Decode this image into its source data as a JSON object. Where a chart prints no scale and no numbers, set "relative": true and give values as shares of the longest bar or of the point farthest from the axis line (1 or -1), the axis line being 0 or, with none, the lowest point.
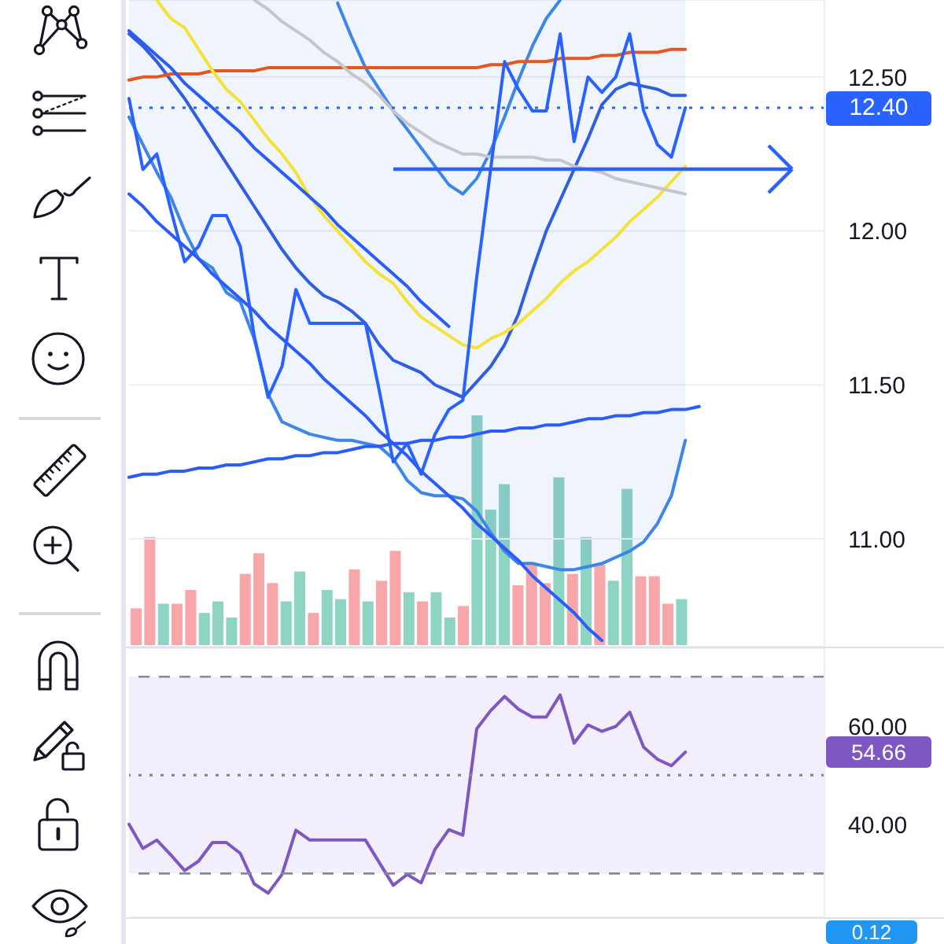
{
  "chart_data": [
    {
      "type": "line",
      "categories": [
        null,
        null,
        null,
        null,
        null,
        null,
        null,
        null,
        null,
        null,
        null,
        null,
        null,
        null,
        null,
        null,
        null,
        null,
        null,
        null,
        null,
        null,
        null,
        null,
        null,
        null,
        null,
        null,
        null,
        null,
        null,
        null,
        null,
        null,
        null,
        null,
        null,
        null,
        null,
        null,
        null,
        null,
        null,
        null,
        null,
        null,
        null,
        null,
        null,
        null,
        null
      ],
      "series": [
        {
          "color": "#2f5ee0",
          "values": [
            12.64,
            12.6,
            12.55,
            12.49,
            12.43,
            12.36,
            12.29,
            12.22,
            12.15,
            12.08,
            12.01,
            11.94,
            11.88,
            11.83,
            11.79,
            11.77,
            11.74,
            11.7,
            11.63,
            11.58,
            11.56,
            11.54,
            11.5,
            11.48,
            11.46,
            11.51,
            11.56,
            11.63,
            11.73,
            11.87,
            12.0,
            12.1,
            12.2,
            12.3,
            12.41,
            12.46,
            12.48,
            12.47,
            12.46,
            12.44,
            12.44,
            null,
            null,
            null,
            null,
            null,
            null,
            null,
            null,
            null,
            null
          ],
          "lower": [
            12.37,
            12.28,
            12.19,
            12.11,
            12.0,
            11.91,
            11.88,
            11.8,
            11.77,
            11.65,
            11.47,
            11.38,
            11.36,
            11.34,
            11.33,
            11.32,
            11.32,
            11.31,
            11.3,
            11.26,
            11.19,
            11.15,
            11.14,
            11.14,
            11.13,
            11.09,
            11.02,
            10.96,
            10.92,
            10.92,
            10.91,
            10.9,
            10.9,
            10.91,
            10.92,
            10.94,
            10.96,
            10.99,
            11.05,
            11.14,
            11.32,
            null,
            null,
            null,
            null,
            null,
            null,
            null,
            null,
            null,
            null
          ],
          "upper": [
            12.75,
            12.75,
            12.75,
            12.75,
            12.75,
            12.75,
            12.75,
            12.75,
            12.75,
            12.75,
            12.75,
            12.75,
            12.75,
            12.75,
            12.75,
            12.75,
            12.75,
            12.75,
            12.75,
            12.75,
            12.75,
            12.75,
            12.75,
            12.75,
            12.75,
            12.75,
            12.75,
            12.75,
            12.75,
            12.75,
            12.75,
            12.75,
            12.75,
            12.75,
            12.75,
            12.75,
            12.75,
            12.75,
            12.75,
            12.75,
            12.75,
            null,
            null,
            null,
            null,
            null,
            null,
            null,
            null,
            null,
            null
          ]
        },
        {
          "color": "#3d86e6",
          "values": [
            12.37,
            12.28,
            12.19,
            12.11,
            12.0,
            11.91,
            11.88,
            11.8,
            11.77,
            11.65,
            11.47,
            11.38,
            11.36,
            11.34,
            11.33,
            11.32,
            11.32,
            11.31,
            11.3,
            11.26,
            11.19,
            11.15,
            11.14,
            11.14,
            11.13,
            11.09,
            11.02,
            10.96,
            10.92,
            10.92,
            10.91,
            10.9,
            10.9,
            10.91,
            10.92,
            10.94,
            10.96,
            10.99,
            11.05,
            11.14,
            11.32,
            null,
            null,
            null,
            null,
            null,
            null,
            null,
            null,
            null,
            null
          ]
        },
        {
          "color": "#3d86e6",
          "values": [
            null,
            null,
            null,
            null,
            null,
            null,
            null,
            null,
            null,
            null,
            null,
            null,
            null,
            null,
            null,
            12.74,
            12.63,
            12.53,
            12.46,
            12.39,
            12.33,
            12.27,
            12.21,
            12.15,
            12.12,
            12.17,
            12.26,
            12.37,
            12.49,
            12.6,
            12.69,
            12.75,
            null,
            null,
            null,
            null,
            null,
            null,
            null,
            null,
            null,
            null,
            null,
            null,
            null,
            null,
            null,
            null,
            null,
            null,
            null
          ]
        },
        {
          "color": "#e4571f",
          "values": [
            12.49,
            12.5,
            12.5,
            12.51,
            12.51,
            12.51,
            12.52,
            12.52,
            12.52,
            12.52,
            12.53,
            12.53,
            12.53,
            12.53,
            12.53,
            12.53,
            12.53,
            12.53,
            12.53,
            12.53,
            12.53,
            12.53,
            12.53,
            12.53,
            12.53,
            12.53,
            12.54,
            12.54,
            12.55,
            12.55,
            12.55,
            12.56,
            12.56,
            12.56,
            12.57,
            12.57,
            12.58,
            12.58,
            12.58,
            12.59,
            12.59,
            null,
            null,
            null,
            null,
            null,
            null,
            null,
            null,
            null,
            null
          ]
        },
        {
          "color": "#f4e23a",
          "values": [
            null,
            null,
            12.75,
            12.69,
            12.66,
            12.59,
            12.52,
            12.46,
            12.42,
            12.36,
            12.3,
            12.25,
            12.19,
            12.11,
            12.05,
            12.0,
            11.95,
            11.9,
            11.86,
            11.83,
            11.77,
            11.72,
            11.69,
            11.66,
            11.63,
            11.62,
            11.65,
            11.67,
            11.7,
            11.74,
            11.78,
            11.83,
            11.87,
            11.9,
            11.94,
            11.98,
            12.03,
            12.07,
            12.11,
            12.16,
            12.21,
            null,
            null,
            null,
            null,
            null,
            null,
            null,
            null,
            null,
            null
          ]
        },
        {
          "color": "#c6c6ca",
          "values": [
            null,
            null,
            null,
            null,
            null,
            null,
            null,
            null,
            null,
            12.75,
            12.72,
            12.68,
            12.65,
            12.62,
            12.58,
            12.55,
            12.51,
            12.48,
            12.44,
            12.39,
            12.35,
            12.32,
            12.29,
            12.27,
            12.25,
            12.25,
            12.24,
            12.24,
            12.24,
            12.24,
            12.23,
            12.23,
            12.21,
            12.2,
            12.19,
            12.17,
            12.16,
            12.15,
            12.14,
            12.13,
            12.12,
            null,
            null,
            null,
            null,
            null,
            null,
            null,
            null,
            null,
            null
          ]
        },
        {
          "color": "#2962ff",
          "values": [
            12.43,
            12.2,
            12.25,
            12.07,
            11.9,
            11.95,
            12.05,
            12.05,
            11.95,
            11.66,
            11.46,
            11.56,
            11.81,
            11.7,
            11.7,
            11.7,
            11.7,
            11.7,
            11.48,
            11.25,
            11.31,
            11.21,
            11.34,
            11.42,
            11.45,
            11.85,
            12.2,
            12.55,
            12.46,
            12.39,
            12.39,
            12.64,
            12.29,
            12.5,
            12.45,
            12.5,
            12.64,
            12.39,
            12.28,
            12.24,
            12.4,
            null,
            null,
            null,
            null,
            null,
            null,
            null,
            null,
            null,
            null
          ]
        },
        {
          "color": "#2a5cf7",
          "values": [
            12.65,
            12.61,
            12.57,
            12.53,
            12.48,
            12.44,
            12.4,
            12.36,
            12.32,
            12.27,
            12.23,
            12.19,
            12.15,
            12.11,
            12.07,
            12.02,
            11.98,
            11.94,
            11.9,
            11.86,
            11.82,
            11.77,
            11.73,
            11.69,
            null,
            null,
            null,
            null,
            null,
            null,
            null,
            null,
            null,
            null,
            null,
            null,
            null,
            null,
            null,
            null,
            null,
            null,
            null,
            null,
            null,
            null,
            null,
            null,
            null,
            null,
            null
          ]
        },
        {
          "color": "#2a5cf7",
          "values": [
            12.12,
            12.08,
            12.03,
            11.99,
            11.95,
            11.91,
            11.86,
            11.82,
            11.78,
            11.74,
            11.69,
            11.65,
            11.61,
            11.57,
            11.52,
            11.48,
            11.44,
            11.4,
            11.35,
            11.31,
            11.27,
            11.22,
            11.18,
            11.14,
            11.1,
            11.05,
            11.01,
            10.97,
            10.93,
            10.88,
            10.84,
            10.8,
            10.76,
            10.71,
            10.67,
            null,
            null,
            null,
            null,
            null,
            null,
            null,
            null,
            null,
            null,
            null,
            null,
            null,
            null,
            null,
            null
          ]
        },
        {
          "color": "#2a5cf7",
          "values": [
            11.2,
            11.21,
            11.21,
            11.22,
            11.22,
            11.23,
            11.23,
            11.24,
            11.24,
            11.25,
            11.26,
            11.26,
            11.27,
            11.27,
            11.28,
            11.28,
            11.29,
            11.3,
            11.3,
            11.31,
            11.31,
            11.32,
            11.32,
            11.33,
            11.33,
            11.34,
            11.35,
            11.35,
            11.36,
            11.36,
            11.37,
            11.37,
            11.38,
            11.39,
            11.39,
            11.4,
            11.4,
            11.41,
            11.41,
            11.42,
            11.42,
            11.43,
            null,
            null,
            null,
            null,
            null,
            null,
            null,
            null,
            null
          ]
        }
      ],
      "ylim": [
        10.65,
        12.75
      ],
      "yticks": [
        {
          "value": 11,
          "label": "11.00"
        },
        {
          "value": 11.5,
          "label": "11.50"
        },
        {
          "value": 12,
          "label": "12.00"
        },
        {
          "value": 12.5,
          "label": "12.50"
        }
      ],
      "grid": "y",
      "tick_labels": "y",
      "ref_lines": [
        {
          "axis": "y",
          "value": 12.4,
          "label": "12.40",
          "color": "#2962ff",
          "line_style": "dotted"
        }
      ]
    },
    {
      "type": "bar",
      "relative": true,
      "tick_labels": false,
      "categories": [
        null,
        null,
        null,
        null,
        null,
        null,
        null,
        null,
        null,
        null,
        null,
        null,
        null,
        null,
        null,
        null,
        null,
        null,
        null,
        null,
        null,
        null,
        null,
        null,
        null,
        null,
        null,
        null,
        null,
        null,
        null,
        null,
        null,
        null,
        null,
        null,
        null,
        null,
        null,
        null,
        null
      ],
      "values": [
        0.16,
        0.47,
        0.18,
        0.18,
        0.24,
        0.14,
        0.19,
        0.12,
        0.31,
        0.4,
        0.27,
        0.19,
        0.32,
        0.14,
        0.24,
        0.2,
        0.33,
        0.19,
        0.28,
        0.41,
        0.23,
        0.19,
        0.23,
        0.12,
        0.17,
        1,
        0.59,
        0.7,
        0.26,
        0.35,
        0.27,
        0.73,
        0.31,
        0.47,
        0.35,
        0.28,
        0.68,
        0.3,
        0.3,
        0.18,
        0.2
      ],
      "colors": [
        "#f7a6aa",
        "#f7a6aa",
        "#8dd4c2",
        "#f7a6aa",
        "#f7a6aa",
        "#8dd4c2",
        "#8dd4c2",
        "#8dd4c2",
        "#f7a6aa",
        "#f7a6aa",
        "#f7a6aa",
        "#8dd4c2",
        "#8dd4c2",
        "#f7a6aa",
        "#8dd4c2",
        "#8dd4c2",
        "#f7a6aa",
        "#8dd4c2",
        "#f7a6aa",
        "#f7a6aa",
        "#8dd4c2",
        "#f7a6aa",
        "#8dd4c2",
        "#8dd4c2",
        "#f7a6aa",
        "#8dd4c2",
        "#8dd4c2",
        "#8dd4c2",
        "#f7a6aa",
        "#f7a6aa",
        "#f7a6aa",
        "#8dd4c2",
        "#f7a6aa",
        "#8dd4c2",
        "#f7a6aa",
        "#8dd4c2",
        "#8dd4c2",
        "#f7a6aa",
        "#f7a6aa",
        "#f7a6aa",
        "#8dd4c2"
      ]
    },
    {
      "type": "line",
      "categories": [
        null,
        null,
        null,
        null,
        null,
        null,
        null,
        null,
        null,
        null,
        null,
        null,
        null,
        null,
        null,
        null,
        null,
        null,
        null,
        null,
        null,
        null,
        null,
        null,
        null,
        null,
        null,
        null,
        null,
        null,
        null,
        null,
        null,
        null,
        null,
        null,
        null,
        null,
        null,
        null,
        null,
        null,
        null,
        null,
        null,
        null,
        null,
        null,
        null,
        null,
        null
      ],
      "series": [
        {
          "color": "#7e57c2",
          "values": [
            40,
            35.1,
            36.8,
            33.8,
            30.6,
            32.5,
            36.3,
            36.3,
            34.1,
            27.9,
            26.0,
            29.8,
            38.8,
            36.8,
            36.8,
            36.8,
            36.8,
            36.8,
            32.2,
            27.6,
            29.8,
            28.1,
            34.9,
            38.9,
            37.8,
            59.4,
            63.1,
            66.0,
            63.4,
            61.8,
            61.8,
            66.3,
            56.5,
            60.2,
            58.9,
            59.9,
            62.8,
            55.7,
            53.2,
            51.9,
            54.66,
            null,
            null,
            null,
            null,
            null,
            null,
            null,
            null,
            null,
            null
          ]
        }
      ],
      "ylim": [
        21.1,
        75.8
      ],
      "yticks": [
        {
          "value": 40,
          "label": "40.00"
        },
        {
          "value": 60,
          "label": "60.00"
        }
      ],
      "grid": "y",
      "tick_labels": "y",
      "bands": [
        {
          "axis": "y",
          "from": 30,
          "to": 70,
          "color": "#f2eefb"
        }
      ],
      "ref_lines": [
        {
          "axis": "y",
          "value": 70,
          "color": "#868993",
          "line_style": "dashed"
        },
        {
          "axis": "y",
          "value": 50,
          "color": "#868993",
          "line_style": "dotted"
        },
        {
          "axis": "y",
          "value": 30,
          "color": "#868993",
          "line_style": "dashed"
        }
      ],
      "annotations": [
        "54.66"
      ]
    },
    {
      "type": "other",
      "annotations": [
        "0.12"
      ]
    }
  ]
}
